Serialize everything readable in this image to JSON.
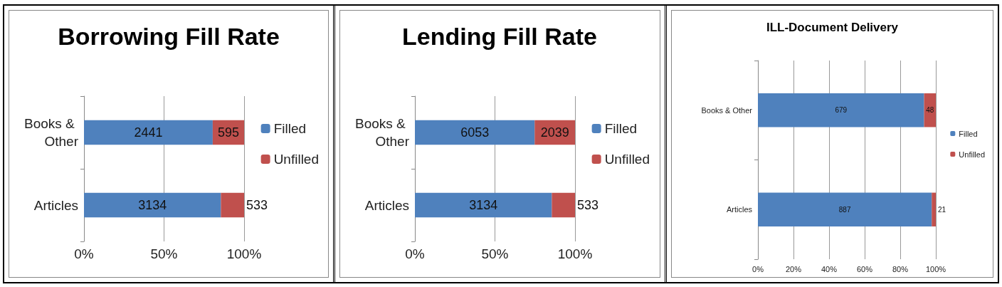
{
  "chart_data": [
    {
      "type": "bar",
      "title": "Borrowing Fill Rate",
      "orientation": "horizontal",
      "stacked": true,
      "categories": [
        "Books & Other",
        "Articles"
      ],
      "series": [
        {
          "name": "Filled",
          "color": "#4f81bd",
          "values": [
            80.4,
            85.5
          ]
        },
        {
          "name": "Unfilled",
          "color": "#c0504d",
          "values": [
            19.6,
            14.5
          ]
        }
      ],
      "annotations": [
        "2441",
        "595",
        "3134",
        "533"
      ],
      "xlim": [
        0,
        100
      ],
      "xticks": [
        {
          "value": 0,
          "label": "0%"
        },
        {
          "value": 50,
          "label": "50%"
        },
        {
          "value": 100,
          "label": "100%"
        }
      ],
      "grid": "x",
      "legend": "right"
    },
    {
      "type": "bar",
      "title": "Lending Fill Rate",
      "orientation": "horizontal",
      "stacked": true,
      "categories": [
        "Books & Other",
        "Articles"
      ],
      "series": [
        {
          "name": "Filled",
          "color": "#4f81bd",
          "values": [
            74.8,
            85.5
          ]
        },
        {
          "name": "Unfilled",
          "color": "#c0504d",
          "values": [
            25.2,
            14.5
          ]
        }
      ],
      "annotations": [
        "6053",
        "2039",
        "3134",
        "533"
      ],
      "xlim": [
        0,
        100
      ],
      "xticks": [
        {
          "value": 0,
          "label": "0%"
        },
        {
          "value": 50,
          "label": "50%"
        },
        {
          "value": 100,
          "label": "100%"
        }
      ],
      "grid": "x",
      "legend": "right"
    },
    {
      "type": "bar",
      "title": "ILL-Document Delivery",
      "orientation": "horizontal",
      "stacked": true,
      "categories": [
        "Books & Other",
        "Articles"
      ],
      "series": [
        {
          "name": "Filled",
          "color": "#4f81bd",
          "values": [
            93.4,
            97.7
          ]
        },
        {
          "name": "Unfilled",
          "color": "#c0504d",
          "values": [
            6.6,
            2.3
          ]
        }
      ],
      "annotations": [
        "679",
        "48",
        "887",
        "21"
      ],
      "xlim": [
        0,
        100
      ],
      "xticks": [
        {
          "value": 0,
          "label": "0%"
        },
        {
          "value": 20,
          "label": "20%"
        },
        {
          "value": 40,
          "label": "40%"
        },
        {
          "value": 60,
          "label": "60%"
        },
        {
          "value": 80,
          "label": "80%"
        },
        {
          "value": 100,
          "label": "100%"
        }
      ],
      "grid": "x",
      "legend": "right"
    }
  ]
}
